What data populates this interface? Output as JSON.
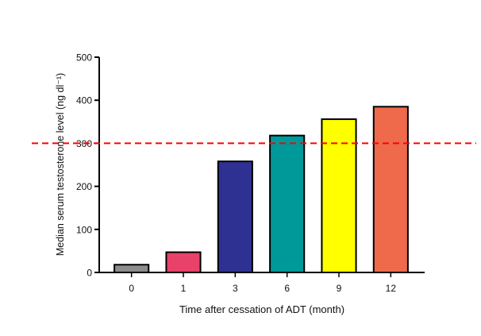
{
  "chart_data": {
    "type": "bar",
    "title": "",
    "xlabel": "Time after cessation of ADT (month)",
    "ylabel": "Median serum testosterone level (ng dl⁻¹)",
    "categories": [
      "0",
      "1",
      "3",
      "6",
      "9",
      "12"
    ],
    "values": [
      18,
      47,
      258,
      318,
      356,
      385
    ],
    "colors": [
      "#8c8c8c",
      "#e8416a",
      "#2e3192",
      "#009999",
      "#ffff00",
      "#ee6a4a"
    ],
    "ylim": [
      0,
      500
    ],
    "yticks": [
      0,
      100,
      200,
      300,
      400,
      500
    ],
    "reference_line": {
      "y": 300,
      "color": "#ff0000",
      "style": "dashed"
    },
    "grid": false,
    "legend": "none"
  }
}
